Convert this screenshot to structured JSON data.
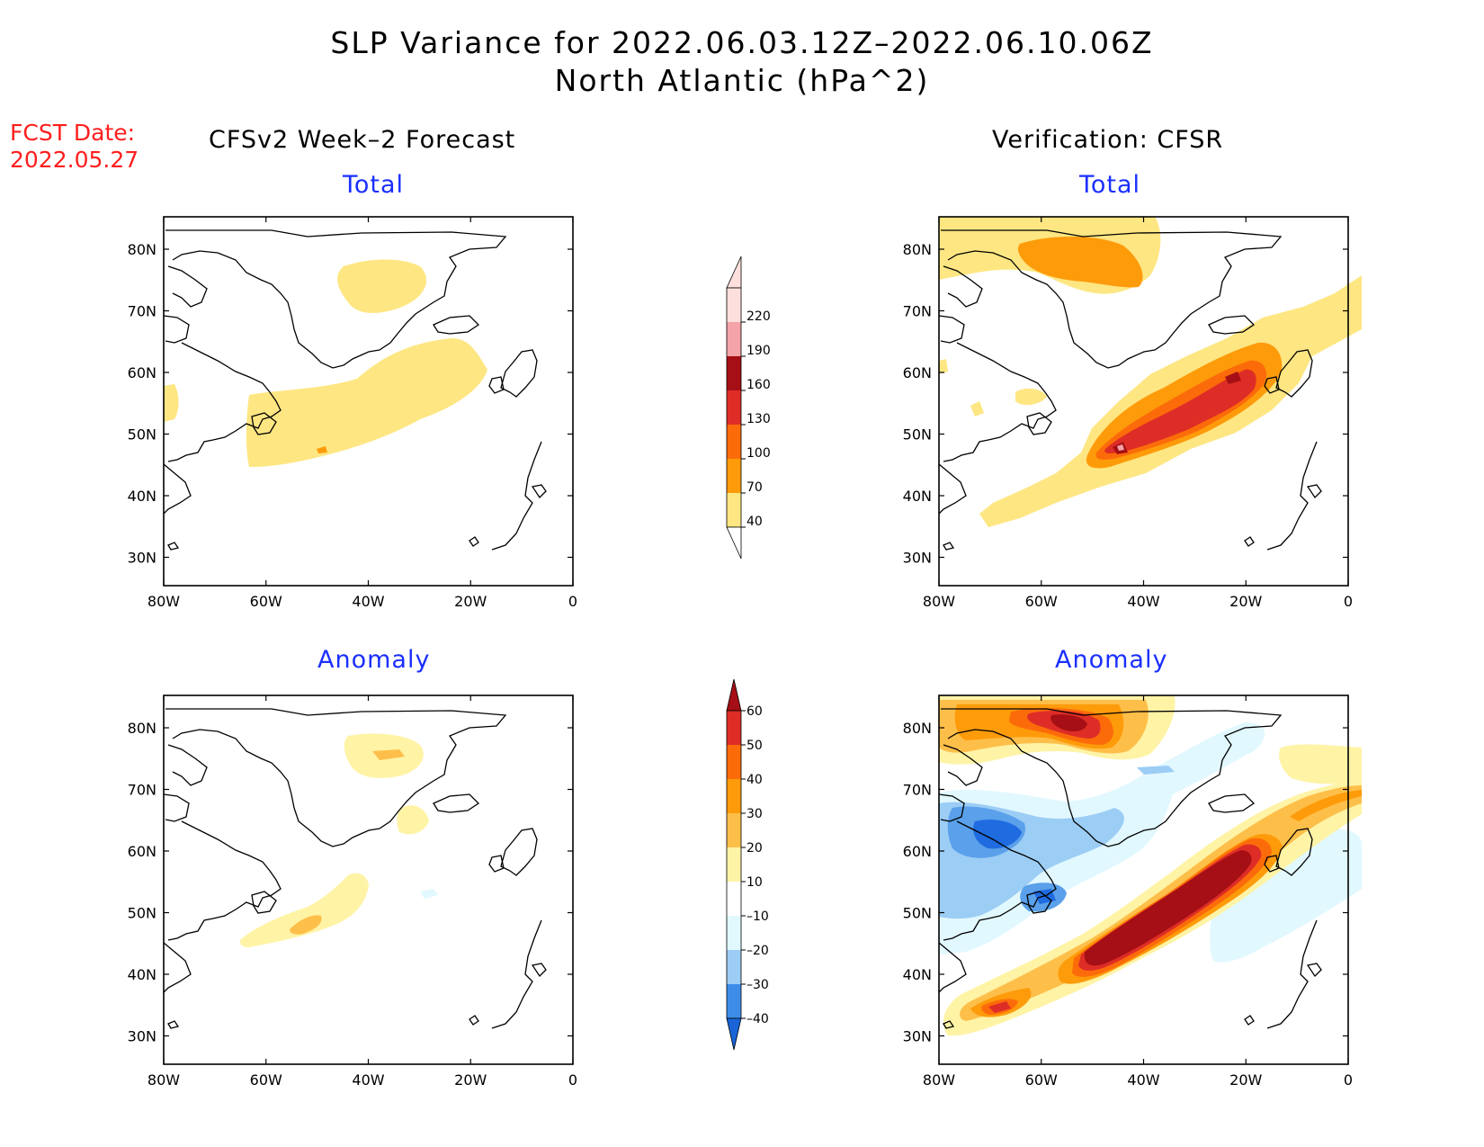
{
  "title": {
    "line1": "SLP Variance for 2022.06.03.12Z–2022.06.10.06Z",
    "line2": "North Atlantic (hPa^2)"
  },
  "fcst": {
    "label": "FCST Date:",
    "date": "2022.05.27"
  },
  "columns": {
    "left": "CFSv2 Week–2 Forecast",
    "right": "Verification: CFSR"
  },
  "panel_titles": {
    "total": "Total",
    "anomaly": "Anomaly"
  },
  "axes": {
    "lon_ticks": [
      "80W",
      "60W",
      "40W",
      "20W",
      "0"
    ],
    "lat_ticks": [
      "80N",
      "70N",
      "60N",
      "50N",
      "40N",
      "30N"
    ]
  },
  "colorbar_total": {
    "levels": [
      "220",
      "190",
      "160",
      "130",
      "100",
      "70",
      "40"
    ],
    "colors": [
      "#fde0dd",
      "#f4a3a8",
      "#a50f15",
      "#de2d26",
      "#fc6b0a",
      "#fe9b0a",
      "#fee682"
    ]
  },
  "colorbar_anomaly": {
    "levels": [
      "60",
      "50",
      "40",
      "30",
      "20",
      "10",
      "–10",
      "–20",
      "–30",
      "–40"
    ],
    "colors": [
      "#a50f15",
      "#de2d26",
      "#fc6b0a",
      "#fe9b0a",
      "#febf4a",
      "#fff3a6",
      "#ffffff",
      "#e1f8ff",
      "#9ccdf5",
      "#3d8de8",
      "#1a64d8"
    ]
  },
  "palette": {
    "yellow": "#fee682",
    "orange": "#fe9b0a",
    "orange_red": "#fc6b0a",
    "red": "#de2d26",
    "dark_red": "#a50f15",
    "pink": "#f4a3a8",
    "pale_yellow": "#fff3a6",
    "light_orange": "#febf4a",
    "pale_blue": "#e1f8ff",
    "light_blue": "#9ccdf5",
    "mid_blue": "#5aa0ea",
    "blue": "#1f6be0"
  }
}
